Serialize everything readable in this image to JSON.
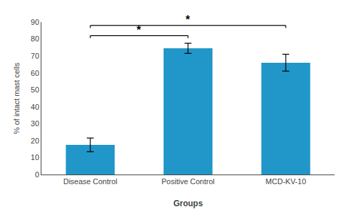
{
  "chart_data": {
    "type": "bar",
    "categories": [
      "Disease Control",
      "Positive Control",
      "MCD-KV-10"
    ],
    "values": [
      17.5,
      74.5,
      66.0
    ],
    "errors": [
      4.0,
      3.0,
      5.0
    ],
    "color": "#2196c8",
    "xlabel": "Groups",
    "ylabel": "% of intact mast cells",
    "ylim": [
      0,
      90
    ],
    "yticks": [
      0,
      10,
      20,
      30,
      40,
      50,
      60,
      70,
      80,
      90
    ],
    "grid": false,
    "annotations": [
      {
        "x1": "Disease Control",
        "x2": "Positive Control",
        "y": 82,
        "text": "*"
      },
      {
        "x1": "Disease Control",
        "x2": "MCD-KV-10",
        "y": 88,
        "text": "*"
      }
    ]
  }
}
